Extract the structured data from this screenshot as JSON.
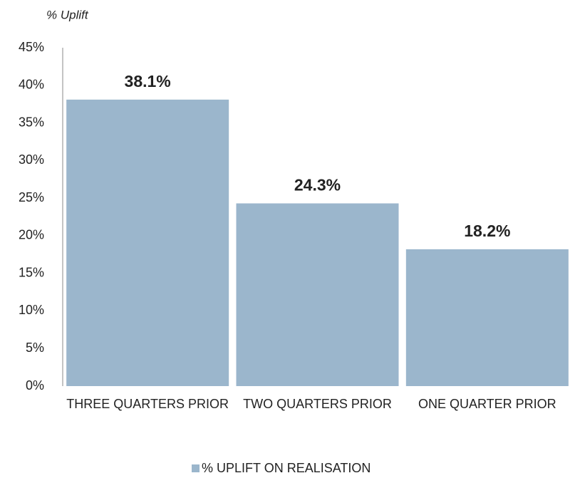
{
  "chart_data": {
    "type": "bar",
    "y_axis_label": "% Uplift",
    "categories": [
      "THREE QUARTERS PRIOR",
      "TWO QUARTERS PRIOR",
      "ONE QUARTER PRIOR"
    ],
    "series": [
      {
        "name": "% UPLIFT ON REALISATION",
        "color": "#9bb6cc",
        "values": [
          38.1,
          24.3,
          18.2
        ],
        "value_labels": [
          "38.1%",
          "24.3%",
          "18.2%"
        ]
      }
    ],
    "ylim": [
      0,
      45
    ],
    "yticks": [
      {
        "value": 0,
        "label": "0%"
      },
      {
        "value": 5,
        "label": "5%"
      },
      {
        "value": 10,
        "label": "10%"
      },
      {
        "value": 15,
        "label": "15%"
      },
      {
        "value": 20,
        "label": "20%"
      },
      {
        "value": 25,
        "label": "25%"
      },
      {
        "value": 30,
        "label": "30%"
      },
      {
        "value": 35,
        "label": "35%"
      },
      {
        "value": 40,
        "label": "40%"
      },
      {
        "value": 45,
        "label": "45%"
      }
    ],
    "legend": "bottom"
  }
}
